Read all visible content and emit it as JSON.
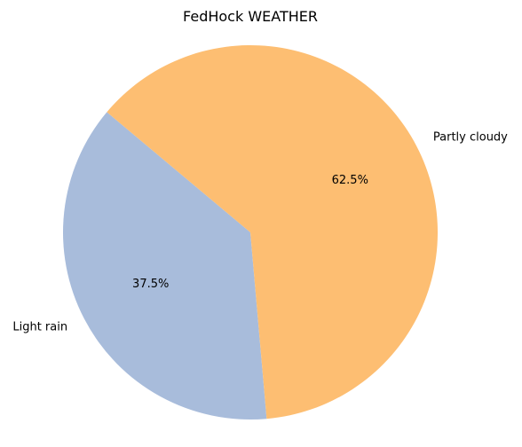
{
  "chart_data": {
    "type": "pie",
    "title": "FedHock WEATHER",
    "categories": [
      "Light rain",
      "Partly cloudy"
    ],
    "values": [
      37.5,
      62.5
    ],
    "percent_labels": [
      "37.5%",
      "62.5%"
    ],
    "colors": [
      "#a8bcdb",
      "#fdbe72"
    ],
    "start_angle_deg": 140,
    "legend": "none"
  }
}
